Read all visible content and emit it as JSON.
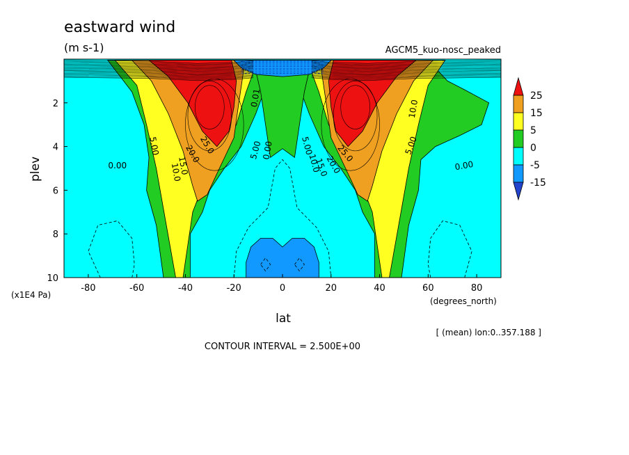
{
  "chart_data": {
    "type": "heatmap",
    "title": "eastward wind",
    "units_label": "(m s-1)",
    "experiment": "AGCM5_kuo-nosc_peaked",
    "ylabel": "plev",
    "xlabel": "lat",
    "x_units": "(degrees_north)",
    "y_units": "(x1E4 Pa)",
    "contour_interval": "CONTOUR INTERVAL = 2.500E+00",
    "mean_note": "[ (mean) lon:0..357.188 ]",
    "xlim": [
      -90,
      90
    ],
    "ylim": [
      10,
      0
    ],
    "x_ticks": [
      -80,
      -60,
      -40,
      -20,
      0,
      20,
      40,
      60,
      80
    ],
    "x_tick_labels": [
      "-80",
      "-60",
      "-40",
      "-20",
      "0",
      "20",
      "40",
      "60",
      "80"
    ],
    "y_ticks": [
      2,
      4,
      6,
      8,
      10
    ],
    "y_tick_labels": [
      "2",
      "4",
      "6",
      "8",
      "10"
    ],
    "colorbar": {
      "labels": [
        "25",
        "15",
        "5",
        "0",
        "-5",
        "-15"
      ],
      "bands": [
        {
          "name": "above 25",
          "color": "#ee1111"
        },
        {
          "name": "15 to 25",
          "color": "#f0a020"
        },
        {
          "name": "5 to 15",
          "color": "#ffff22"
        },
        {
          "name": "0 to 5",
          "color": "#22cc22"
        },
        {
          "name": "-5 to 0",
          "color": "#00ffff"
        },
        {
          "name": "-15 to -5",
          "color": "#1199ff"
        },
        {
          "name": "below -15",
          "color": "#2244cc"
        }
      ]
    },
    "regions": [
      {
        "name": "cyan-background",
        "color": "#00ffff",
        "points": [
          [
            -90,
            0
          ],
          [
            90,
            0
          ],
          [
            90,
            10
          ],
          [
            -90,
            10
          ]
        ]
      },
      {
        "name": "green-left",
        "color": "#22cc22",
        "points": [
          [
            -72,
            0.05
          ],
          [
            -62,
            1.5
          ],
          [
            -57,
            3.0
          ],
          [
            -55,
            4.5
          ],
          [
            -56,
            6.0
          ],
          [
            -52,
            7.6
          ],
          [
            -49,
            10
          ],
          [
            -38,
            10
          ],
          [
            -38,
            8
          ],
          [
            -33,
            7.0
          ],
          [
            -30,
            6.0
          ],
          [
            -24,
            5.0
          ],
          [
            -17,
            4.0
          ],
          [
            -11,
            2.5
          ],
          [
            -6,
            1.0
          ],
          [
            -3,
            0.2
          ],
          [
            -3,
            0.05
          ]
        ]
      },
      {
        "name": "green-right",
        "color": "#22cc22",
        "points": [
          [
            3,
            0.05
          ],
          [
            3,
            0.2
          ],
          [
            6,
            1.0
          ],
          [
            11,
            2.5
          ],
          [
            17,
            4.0
          ],
          [
            24,
            5.0
          ],
          [
            30,
            6.0
          ],
          [
            33,
            7.0
          ],
          [
            38,
            8
          ],
          [
            38,
            10
          ],
          [
            49,
            10
          ],
          [
            52,
            7.6
          ],
          [
            56,
            6.0
          ],
          [
            57,
            4.6
          ],
          [
            63,
            4.0
          ],
          [
            73,
            3.5
          ],
          [
            82,
            3.0
          ],
          [
            85,
            2.0
          ],
          [
            75,
            1.4
          ],
          [
            68,
            1.0
          ],
          [
            63,
            0.4
          ],
          [
            61,
            0.05
          ]
        ]
      },
      {
        "name": "green-center",
        "color": "#22cc22",
        "points": [
          [
            -12,
            0.05
          ],
          [
            12,
            0.05
          ],
          [
            9,
            1.5
          ],
          [
            7,
            3.0
          ],
          [
            5,
            4.5
          ],
          [
            0,
            4.1
          ],
          [
            -5,
            4.5
          ],
          [
            -7,
            3.0
          ],
          [
            -9,
            1.5
          ]
        ]
      },
      {
        "name": "yellow-left",
        "color": "#ffff22",
        "points": [
          [
            -69,
            0.05
          ],
          [
            -60,
            1.2
          ],
          [
            -56,
            3.0
          ],
          [
            -52,
            5.0
          ],
          [
            -48,
            7.5
          ],
          [
            -44,
            10
          ],
          [
            -41,
            10
          ],
          [
            -37,
            7.0
          ],
          [
            -30,
            5.0
          ],
          [
            -24,
            4.0
          ],
          [
            -19,
            3.0
          ],
          [
            -15,
            1.5
          ],
          [
            -11,
            0.3
          ],
          [
            -13,
            0.05
          ]
        ]
      },
      {
        "name": "yellow-right",
        "color": "#ffff22",
        "points": [
          [
            13,
            0.05
          ],
          [
            11,
            0.3
          ],
          [
            15,
            1.5
          ],
          [
            19,
            3.0
          ],
          [
            24,
            4.0
          ],
          [
            30,
            5.0
          ],
          [
            37,
            7.0
          ],
          [
            41,
            10
          ],
          [
            44,
            10
          ],
          [
            48,
            7.5
          ],
          [
            52,
            5.0
          ],
          [
            56,
            3.0
          ],
          [
            60,
            1.2
          ],
          [
            67,
            0.05
          ]
        ]
      },
      {
        "name": "orange-left",
        "color": "#f0a020",
        "points": [
          [
            -62,
            0.05
          ],
          [
            -54,
            1.0
          ],
          [
            -47,
            2.5
          ],
          [
            -41,
            4.2
          ],
          [
            -37,
            5.8
          ],
          [
            -35,
            6.5
          ],
          [
            -31,
            6.2
          ],
          [
            -26,
            5.0
          ],
          [
            -20,
            3.6
          ],
          [
            -18,
            2.0
          ],
          [
            -16,
            0.5
          ],
          [
            -20,
            0.05
          ]
        ]
      },
      {
        "name": "orange-right",
        "color": "#f0a020",
        "points": [
          [
            20,
            0.05
          ],
          [
            16,
            0.5
          ],
          [
            18,
            2.0
          ],
          [
            20,
            3.6
          ],
          [
            26,
            5.0
          ],
          [
            31,
            6.2
          ],
          [
            35,
            6.5
          ],
          [
            37,
            5.8
          ],
          [
            41,
            4.2
          ],
          [
            47,
            2.5
          ],
          [
            54,
            1.0
          ],
          [
            62,
            0.05
          ]
        ]
      },
      {
        "name": "red-left",
        "color": "#ee1111",
        "points": [
          [
            -55,
            0.05
          ],
          [
            -47,
            0.8
          ],
          [
            -39,
            2.0
          ],
          [
            -33,
            3.3
          ],
          [
            -27,
            4.0
          ],
          [
            -22,
            3.3
          ],
          [
            -20,
            2.2
          ],
          [
            -19,
            1.0
          ],
          [
            -21,
            0.05
          ]
        ]
      },
      {
        "name": "red-right",
        "color": "#ee1111",
        "points": [
          [
            21,
            0.05
          ],
          [
            19,
            1.0
          ],
          [
            20,
            2.2
          ],
          [
            22,
            3.3
          ],
          [
            27,
            4.0
          ],
          [
            33,
            3.3
          ],
          [
            39,
            2.0
          ],
          [
            47,
            0.8
          ],
          [
            55,
            0.05
          ]
        ]
      },
      {
        "name": "blue-top",
        "color": "#1199ff",
        "points": [
          [
            -20,
            0.05
          ],
          [
            20,
            0.05
          ],
          [
            17,
            0.4
          ],
          [
            11,
            0.7
          ],
          [
            0,
            0.8
          ],
          [
            -11,
            0.7
          ],
          [
            -17,
            0.4
          ]
        ]
      },
      {
        "name": "blue-bottom",
        "color": "#1199ff",
        "points": [
          [
            -15,
            10
          ],
          [
            -15,
            9.3
          ],
          [
            -13,
            8.6
          ],
          [
            -9,
            8.2
          ],
          [
            -4,
            8.2
          ],
          [
            0,
            8.6
          ],
          [
            4,
            8.2
          ],
          [
            9,
            8.2
          ],
          [
            13,
            8.6
          ],
          [
            15,
            9.3
          ],
          [
            15,
            10
          ]
        ]
      }
    ],
    "contour_labels": [
      {
        "text": "0.00",
        "x": -68,
        "y": 5.0,
        "rotate": 0
      },
      {
        "text": "0.00",
        "x": 75,
        "y": 5.0,
        "rotate": -10
      },
      {
        "text": "5.00",
        "x": -54,
        "y": 4.0,
        "rotate": 80
      },
      {
        "text": "5.00",
        "x": 54,
        "y": 4.0,
        "rotate": -70
      },
      {
        "text": "10.0",
        "x": -45,
        "y": 5.2,
        "rotate": 80
      },
      {
        "text": "10.0",
        "x": 55,
        "y": 2.3,
        "rotate": -80
      },
      {
        "text": "15.0",
        "x": -42,
        "y": 4.9,
        "rotate": 80
      },
      {
        "text": "20.0",
        "x": -38,
        "y": 4.4,
        "rotate": 60
      },
      {
        "text": "25.0",
        "x": -32,
        "y": 4.0,
        "rotate": 60
      },
      {
        "text": "5.00",
        "x": -10,
        "y": 4.2,
        "rotate": -75
      },
      {
        "text": "0.00",
        "x": -5,
        "y": 4.2,
        "rotate": -80
      },
      {
        "text": "5.00",
        "x": 9,
        "y": 4.0,
        "rotate": 75
      },
      {
        "text": "10.0",
        "x": 12,
        "y": 4.8,
        "rotate": 75
      },
      {
        "text": "15.0",
        "x": 15,
        "y": 5.0,
        "rotate": 70
      },
      {
        "text": "20.0",
        "x": 20,
        "y": 4.9,
        "rotate": 60
      },
      {
        "text": "25.0",
        "x": 25,
        "y": 4.4,
        "rotate": 50
      },
      {
        "text": "0.01",
        "x": -10,
        "y": 1.8,
        "rotate": -80
      }
    ]
  }
}
